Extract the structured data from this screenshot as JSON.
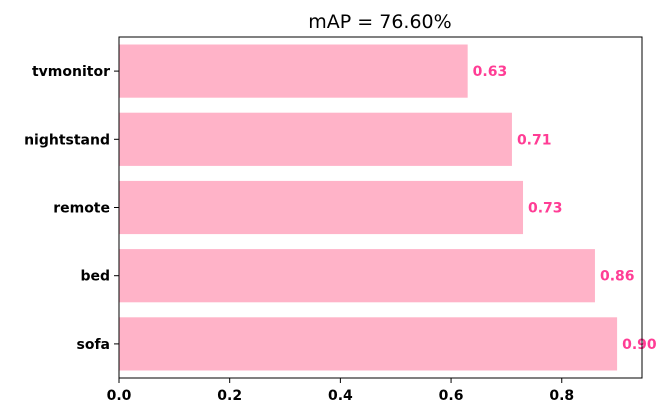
{
  "chart_data": {
    "type": "bar",
    "orientation": "horizontal",
    "title": "mAP = 76.60%",
    "categories": [
      "sofa",
      "bed",
      "remote",
      "nightstand",
      "tvmonitor"
    ],
    "values": [
      0.9,
      0.86,
      0.73,
      0.71,
      0.63
    ],
    "value_labels": [
      "0.90",
      "0.86",
      "0.73",
      "0.71",
      "0.63"
    ],
    "xlabel": "",
    "ylabel": "",
    "xlim": [
      0,
      0.945
    ],
    "xticks": [
      0.0,
      0.2,
      0.4,
      0.6,
      0.8
    ],
    "xtick_labels": [
      "0.0",
      "0.2",
      "0.4",
      "0.6",
      "0.8"
    ],
    "grid": false,
    "bar_color": "#ffb3c8",
    "value_label_color": "#ff3d95"
  }
}
